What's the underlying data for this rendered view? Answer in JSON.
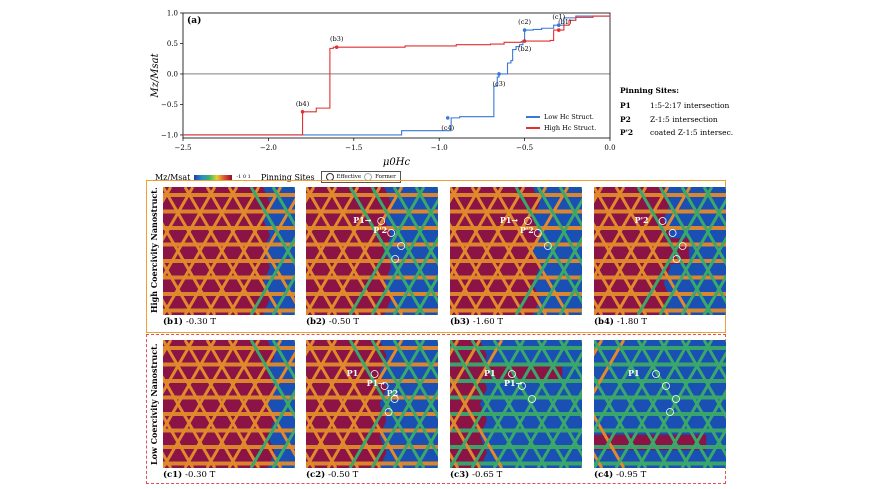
{
  "chart_data": {
    "type": "line",
    "panel_label": "(a)",
    "xlabel": "μ0Hc",
    "ylabel": "Mz/Msat",
    "xlim": [
      -2.5,
      0.0
    ],
    "ylim": [
      -1.05,
      1.0
    ],
    "x_ticks": [
      "−2.5",
      "−2.0",
      "−1.5",
      "−1.0",
      "−0.5",
      "0.0"
    ],
    "y_ticks": [
      "1.0",
      "0.5",
      "0.0",
      "−0.5",
      "−1.0"
    ],
    "legend_position": "lower-right",
    "series": [
      {
        "name": "Low Hc Struct.",
        "color": "#3a78d8",
        "x": [
          -2.5,
          -1.24,
          -1.22,
          -0.95,
          -0.93,
          -0.88,
          -0.7,
          -0.68,
          -0.66,
          -0.65,
          -0.62,
          -0.6,
          -0.58,
          -0.57,
          -0.55,
          -0.53,
          -0.51,
          -0.5,
          -0.49,
          -0.45,
          -0.42,
          -0.4,
          -0.34,
          -0.33,
          -0.3,
          -0.27,
          -0.2,
          0.0
        ],
        "y": [
          -1.0,
          -1.0,
          -0.93,
          -0.93,
          -0.72,
          -0.7,
          -0.7,
          -0.2,
          -0.05,
          0.0,
          0.0,
          0.18,
          0.22,
          0.4,
          0.45,
          0.48,
          0.55,
          0.72,
          0.72,
          0.73,
          0.73,
          0.75,
          0.75,
          0.8,
          0.8,
          0.92,
          0.95,
          0.96
        ]
      },
      {
        "name": "High Hc Struct.",
        "color": "#e03030",
        "x": [
          -2.5,
          -1.82,
          -1.8,
          -1.75,
          -1.72,
          -1.66,
          -1.64,
          -1.62,
          -1.6,
          -1.2,
          -0.9,
          -0.7,
          -0.62,
          -0.55,
          -0.52,
          -0.5,
          -0.35,
          -0.33,
          -0.3,
          -0.27,
          -0.24,
          -0.2,
          -0.1,
          0.0
        ],
        "y": [
          -1.0,
          -1.0,
          -0.62,
          -0.62,
          -0.56,
          -0.56,
          0.42,
          0.44,
          0.44,
          0.46,
          0.48,
          0.49,
          0.52,
          0.52,
          0.53,
          0.54,
          0.55,
          0.72,
          0.72,
          0.8,
          0.88,
          0.93,
          0.95,
          0.96
        ]
      }
    ],
    "markers": [
      {
        "label": "(b1)",
        "x": -0.3,
        "y": 0.72,
        "series": "High Hc Struct."
      },
      {
        "label": "(b2)",
        "x": -0.5,
        "y": 0.54,
        "series": "High Hc Struct."
      },
      {
        "label": "(b3)",
        "x": -1.6,
        "y": 0.44,
        "series": "High Hc Struct."
      },
      {
        "label": "(b4)",
        "x": -1.8,
        "y": -0.62,
        "series": "High Hc Struct."
      },
      {
        "label": "(c1)",
        "x": -0.3,
        "y": 0.8,
        "series": "Low Hc Struct."
      },
      {
        "label": "(c2)",
        "x": -0.5,
        "y": 0.72,
        "series": "Low Hc Struct."
      },
      {
        "label": "(c3)",
        "x": -0.65,
        "y": 0.0,
        "series": "Low Hc Struct."
      },
      {
        "label": "(c4)",
        "x": -0.95,
        "y": -0.72,
        "series": "Low Hc Struct."
      }
    ]
  },
  "pinning_sites": {
    "title": "Pinning Sites:",
    "items": [
      {
        "key": "P1",
        "desc": "1:5-2:17 intersection"
      },
      {
        "key": "P2",
        "desc": "Z-1:5 intersection"
      },
      {
        "key": "P'2",
        "desc": "coated Z-1:5 intersec."
      }
    ]
  },
  "legend_sub": {
    "colorbar_label": "Mz/Msat",
    "colorbar_ticks": [
      "-1",
      "0",
      "1"
    ],
    "pinning_label": "Pinning Sites",
    "effective": "Effective",
    "former": "Former"
  },
  "colors": {
    "domain_up": "#8b1346",
    "domain_down": "#1a4fb4",
    "boundary_orange": "#e08a2c",
    "boundary_green": "#3aa86a",
    "frame_high": "#f0a030",
    "frame_low": "#e05050"
  },
  "rows": {
    "high_label": "High Coercivity Nanostruct.",
    "low_label": "Low Coercivity Nanostruct."
  },
  "panels": [
    {
      "id": "b1",
      "caption": "(b1)",
      "field": "-0.30 T",
      "labels": []
    },
    {
      "id": "b2",
      "caption": "(b2)",
      "field": "-0.50 T",
      "labels": [
        "P1→",
        "P'2"
      ]
    },
    {
      "id": "b3",
      "caption": "(b3)",
      "field": "-1.60 T",
      "labels": [
        "P1→",
        "P'2"
      ]
    },
    {
      "id": "b4",
      "caption": "(b4)",
      "field": "-1.80 T",
      "labels": [
        "P'2"
      ]
    },
    {
      "id": "c1",
      "caption": "(c1)",
      "field": "-0.30 T",
      "labels": []
    },
    {
      "id": "c2",
      "caption": "(c2)",
      "field": "-0.50 T",
      "labels": [
        "P1",
        "P1→",
        "P2"
      ]
    },
    {
      "id": "c3",
      "caption": "(c3)",
      "field": "-0.65 T",
      "labels": [
        "P1",
        "P1→"
      ]
    },
    {
      "id": "c4",
      "caption": "(c4)",
      "field": "-0.95 T",
      "labels": [
        "P1"
      ]
    }
  ]
}
